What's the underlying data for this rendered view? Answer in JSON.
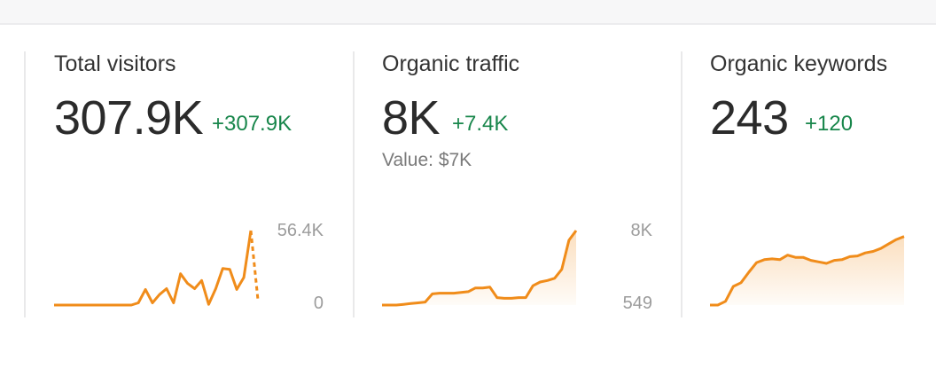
{
  "metrics": [
    {
      "title": "Total visitors",
      "value": "307.9K",
      "delta": "+307.9K",
      "axis_max": "56.4K",
      "axis_min": "0",
      "chart_data": {
        "type": "line",
        "fill": false,
        "values": [
          0,
          0,
          0,
          0,
          0,
          0,
          0,
          0,
          0,
          0,
          0,
          0,
          0.03,
          0.21,
          0.03,
          0.14,
          0.22,
          0.03,
          0.42,
          0.29,
          0.22,
          0.33,
          0.01,
          0.22,
          0.49,
          0.48,
          0.21,
          0.37,
          1.0
        ],
        "projected_end": 0.07,
        "color": "#f08c1a"
      }
    },
    {
      "title": "Organic traffic",
      "value": "8K",
      "delta": "+7.4K",
      "subtitle": "Value: $7K",
      "axis_max": "8K",
      "axis_min": "549",
      "chart_data": {
        "type": "area",
        "fill": true,
        "values": [
          0,
          0,
          0,
          0.01,
          0.02,
          0.03,
          0.04,
          0.15,
          0.16,
          0.16,
          0.16,
          0.17,
          0.18,
          0.23,
          0.23,
          0.24,
          0.1,
          0.09,
          0.09,
          0.1,
          0.1,
          0.26,
          0.31,
          0.33,
          0.36,
          0.48,
          0.87,
          1.0
        ],
        "color": "#f08c1a"
      }
    },
    {
      "title": "Organic keywords",
      "value": "243",
      "delta": "+120",
      "chart_data": {
        "type": "area",
        "fill": true,
        "values": [
          0,
          0,
          0.05,
          0.25,
          0.3,
          0.44,
          0.57,
          0.61,
          0.62,
          0.61,
          0.67,
          0.64,
          0.64,
          0.6,
          0.58,
          0.56,
          0.6,
          0.61,
          0.65,
          0.66,
          0.7,
          0.72,
          0.76,
          0.82,
          0.88,
          0.92
        ],
        "color": "#f08c1a"
      }
    }
  ]
}
